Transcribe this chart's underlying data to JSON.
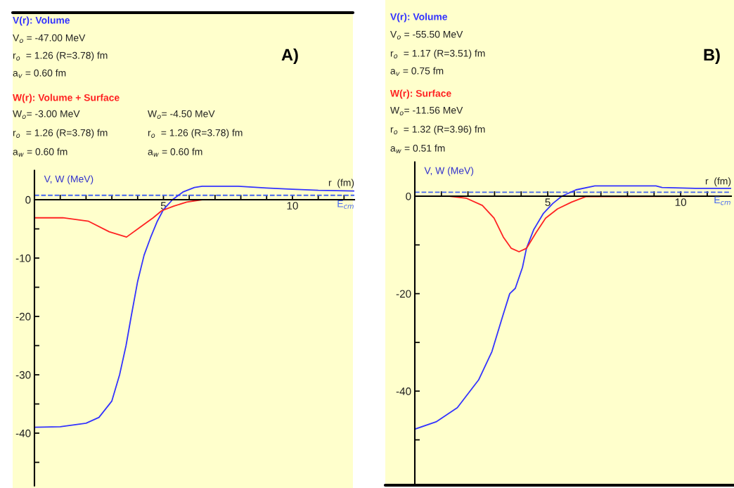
{
  "chart_data": [
    {
      "type": "line",
      "xlabel": "r  (fm)",
      "ylabel": "V, W (MeV)",
      "xlim": [
        0,
        12.4
      ],
      "ylim": [
        -49,
        5
      ],
      "xticks": [
        {
          "value": 0,
          "label": null
        },
        {
          "value": 1,
          "label": null
        },
        {
          "value": 2,
          "label": null
        },
        {
          "value": 3,
          "label": null
        },
        {
          "value": 4,
          "label": null
        },
        5,
        {
          "value": 6,
          "label": null
        },
        {
          "value": 7,
          "label": null
        },
        {
          "value": 8,
          "label": null
        },
        {
          "value": 9,
          "label": null
        },
        10,
        {
          "value": 11,
          "label": null
        },
        {
          "value": 12,
          "label": null
        }
      ],
      "yticks": [
        0,
        {
          "value": -5,
          "label": null
        },
        -10,
        {
          "value": -15,
          "label": null
        },
        -20,
        {
          "value": -25,
          "label": null
        },
        -30,
        {
          "value": -35,
          "label": null
        },
        -40,
        {
          "value": -45,
          "label": null
        }
      ],
      "series": [
        {
          "name": "V(r): Volume",
          "color": "#3333ff",
          "x": [
            0,
            1,
            2,
            2.5,
            3.0,
            3.3,
            3.55,
            3.75,
            4.0,
            4.25,
            4.5,
            4.75,
            5.0,
            5.35,
            5.75,
            6.2,
            6.5,
            7.9,
            9.0,
            10,
            11,
            12.4
          ],
          "values": [
            -39.0,
            -38.9,
            -38.3,
            -37.3,
            -34.5,
            -30,
            -25,
            -20,
            -14,
            -9.5,
            -6.5,
            -3.8,
            -1.7,
            0,
            1.3,
            2.1,
            2.3,
            2.3,
            2.0,
            1.8,
            1.6,
            1.5
          ]
        },
        {
          "name": "W(r): Volume + Surface",
          "color": "#ff2222",
          "x": [
            0,
            1.1,
            2.1,
            2.9,
            3.57,
            4.1,
            4.6,
            4.93,
            5.4,
            5.9,
            6.5,
            12.4
          ],
          "values": [
            -3.1,
            -3.1,
            -3.7,
            -5.5,
            -6.4,
            -4.7,
            -3.1,
            -1.9,
            -1.1,
            -0.4,
            0,
            0
          ]
        }
      ],
      "ref_lines": [
        {
          "axis": "y",
          "value": 0.75,
          "label": "E$_{cm}$",
          "color": "#4466ee",
          "line_style": "dashed"
        }
      ],
      "annotations": [
        "V$_{o}$ = -47.00 MeV",
        "r$_{o}$  = 1.26 (R=3.78) fm",
        "a$_{v}$ = 0.60 fm",
        "W$_{o}$= -3.00 MeV",
        "r$_{o}$  = 1.26 (R=3.78) fm",
        "a$_{w}$ = 0.60 fm",
        "W$_{o}$= -4.50 MeV",
        "r$_{o}$  = 1.26 (R=3.78) fm",
        "a$_{w}$ = 0.60 fm",
        "A)"
      ]
    },
    {
      "type": "line",
      "xlabel": "r  (fm)",
      "ylabel": "V, W (MeV)",
      "xlim": [
        0,
        11.9
      ],
      "ylim": [
        -59,
        7
      ],
      "xticks": [
        {
          "value": 0,
          "label": null
        },
        {
          "value": 1,
          "label": null
        },
        {
          "value": 2,
          "label": null
        },
        {
          "value": 3,
          "label": null
        },
        {
          "value": 4,
          "label": null
        },
        5,
        {
          "value": 6,
          "label": null
        },
        {
          "value": 7,
          "label": null
        },
        {
          "value": 8,
          "label": null
        },
        {
          "value": 9,
          "label": null
        },
        10,
        {
          "value": 11,
          "label": null
        }
      ],
      "yticks": [
        0,
        {
          "value": -10,
          "label": null
        },
        -20,
        {
          "value": -30,
          "label": null
        },
        -40,
        {
          "value": -50,
          "label": null
        }
      ],
      "series": [
        {
          "name": "V(r): Volume",
          "color": "#3333ff",
          "x": [
            0,
            0.8,
            1.6,
            2.4,
            2.9,
            3.3,
            3.57,
            3.78,
            4.05,
            4.2,
            4.47,
            4.84,
            5.19,
            5.53,
            6.06,
            6.77,
            9.07,
            9.3,
            10.55,
            11.9
          ],
          "values": [
            -47.8,
            -46.3,
            -43.4,
            -37.7,
            -31.9,
            -24.7,
            -20,
            -18.9,
            -14.6,
            -10.7,
            -6.9,
            -3.5,
            -1.5,
            0,
            1.3,
            2.1,
            2.1,
            1.8,
            1.6,
            1.6
          ]
        },
        {
          "name": "W(r): Surface",
          "color": "#ff2222",
          "x": [
            0,
            1.3,
            1.93,
            2.54,
            2.98,
            3.33,
            3.63,
            3.92,
            4.2,
            4.57,
            4.92,
            5.37,
            5.9,
            6.43,
            11.9
          ],
          "values": [
            0,
            0,
            -0.4,
            -1.9,
            -4.5,
            -8.4,
            -10.7,
            -11.4,
            -10.7,
            -7.4,
            -4.5,
            -2.6,
            -1.2,
            -0.1,
            0
          ]
        }
      ],
      "ref_lines": [
        {
          "axis": "y",
          "value": 0.8,
          "label": "E$_{cm}$",
          "color": "#4466ee",
          "line_style": "dashed"
        }
      ],
      "annotations": [
        "V$_{o}$ = -55.50 MeV",
        "r$_{o}$  = 1.17 (R=3.51) fm",
        "a$_{v}$ = 0.75 fm",
        "W$_{o}$= -11.56 MeV",
        "r$_{o}$  = 1.32 (R=3.96) fm",
        "a$_{w}$ = 0.51 fm",
        "B)"
      ]
    }
  ]
}
